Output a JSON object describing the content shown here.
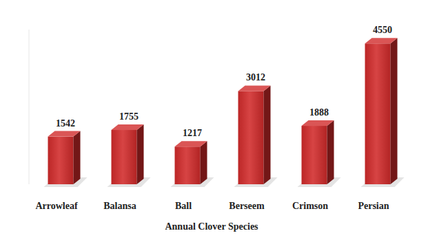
{
  "chart_data": {
    "type": "bar",
    "x_label": "Annual Clover Species",
    "categories": [
      "Arrowleaf",
      "Balansa",
      "Ball",
      "Berseem",
      "Crimson",
      "Persian"
    ],
    "values": [
      1542,
      1755,
      1217,
      3012,
      1888,
      4550
    ],
    "color": "#d12a2a",
    "ylim": [
      0,
      5000
    ],
    "data_labels": true,
    "tick_labels": "x",
    "grid": false
  }
}
